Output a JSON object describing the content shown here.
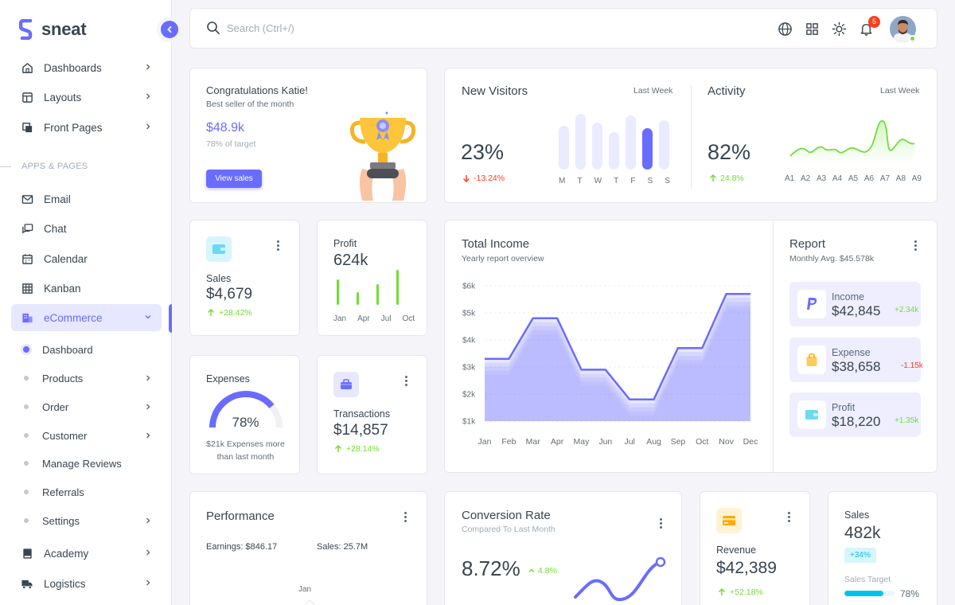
{
  "brand": {
    "name": "sneat"
  },
  "sidebar": {
    "main_items": [
      {
        "label": "Dashboards",
        "icon": "home-icon"
      },
      {
        "label": "Layouts",
        "icon": "layout-icon"
      },
      {
        "label": "Front Pages",
        "icon": "copy-icon"
      }
    ],
    "section_header": "APPS & PAGES",
    "app_items": [
      {
        "label": "Email",
        "icon": "mail-icon"
      },
      {
        "label": "Chat",
        "icon": "chat-icon"
      },
      {
        "label": "Calendar",
        "icon": "calendar-icon"
      },
      {
        "label": "Kanban",
        "icon": "grid-icon"
      },
      {
        "label": "eCommerce",
        "icon": "building-icon"
      }
    ],
    "ecommerce_sub": [
      {
        "label": "Dashboard"
      },
      {
        "label": "Products"
      },
      {
        "label": "Order"
      },
      {
        "label": "Customer"
      },
      {
        "label": "Manage Reviews"
      },
      {
        "label": "Referrals"
      },
      {
        "label": "Settings"
      }
    ],
    "bottom_items": [
      {
        "label": "Academy",
        "icon": "book-icon"
      },
      {
        "label": "Logistics",
        "icon": "truck-icon"
      }
    ]
  },
  "navbar": {
    "search_placeholder": "Search (Ctrl+/)",
    "notification_count": "5"
  },
  "congrats": {
    "title": "Congratulations Katie!",
    "subtitle": "Best seller of the month",
    "amount": "$48.9k",
    "target": "78% of target",
    "button": "View sales"
  },
  "visitors": {
    "title": "New Visitors",
    "period": "Last Week",
    "value": "23%",
    "change": "-13.24%",
    "days": [
      "M",
      "T",
      "W",
      "T",
      "F",
      "S",
      "S"
    ],
    "bar_levels": [
      0.38,
      0.58,
      0.44,
      0.28,
      0.55,
      0.34,
      0.48
    ]
  },
  "activity": {
    "title": "Activity",
    "period": "Last Week",
    "value": "82%",
    "change": "24.8%",
    "labels": [
      "A1",
      "A2",
      "A3",
      "A4",
      "A5",
      "A6",
      "A7",
      "A8",
      "A9"
    ]
  },
  "sales_small": {
    "title": "Sales",
    "value": "$4,679",
    "change": "+28.42%"
  },
  "profit": {
    "title": "Profit",
    "value": "624k",
    "months": [
      "Jan",
      "Apr",
      "Jul",
      "Oct"
    ]
  },
  "expenses": {
    "title": "Expenses",
    "percent": "78%",
    "note_line1": "$21k Expenses more",
    "note_line2": "than last month",
    "level": 0.78
  },
  "transactions": {
    "title": "Transactions",
    "value": "$14,857",
    "change": "+28.14%"
  },
  "income": {
    "title": "Total Income",
    "subtitle": "Yearly report overview"
  },
  "chart_data": {
    "type": "area",
    "title": "Total Income",
    "subtitle": "Yearly report overview",
    "categories": [
      "Jan",
      "Feb",
      "Mar",
      "Apr",
      "May",
      "Jun",
      "Jul",
      "Aug",
      "Sep",
      "Oct",
      "Nov",
      "Dec"
    ],
    "values": [
      3.3,
      3.3,
      4.8,
      4.8,
      2.9,
      2.9,
      1.8,
      1.8,
      3.7,
      3.7,
      5.7,
      5.7
    ],
    "y_ticks": [
      "$6k",
      "$5k",
      "$4k",
      "$3k",
      "$2k",
      "$1k"
    ],
    "ylim": [
      1,
      6
    ],
    "grid": true
  },
  "report": {
    "title": "Report",
    "subtitle": "Monthly Avg. $45.578k",
    "items": [
      {
        "label": "Income",
        "value": "$42,845",
        "change": "+2.34k",
        "icon": "paypal-icon"
      },
      {
        "label": "Expense",
        "value": "$38,658",
        "change": "-1.15k",
        "icon": "shopping-bag-icon"
      },
      {
        "label": "Profit",
        "value": "$18,220",
        "change": "+1.35k",
        "icon": "wallet-icon"
      }
    ]
  },
  "performance": {
    "title": "Performance",
    "earnings": "Earnings: $846.17",
    "sales": "Sales: 25.7M",
    "axis_label": "Jan"
  },
  "conversion": {
    "title": "Conversion Rate",
    "subtitle": "Compared To Last Month",
    "value": "8.72%",
    "change": "4.8%"
  },
  "revenue": {
    "title": "Revenue",
    "value": "$42,389",
    "change": "+52.18%"
  },
  "sales_target": {
    "title": "Sales",
    "value": "482k",
    "badge": "+34%",
    "target_label": "Sales Target",
    "target_percent": "78%",
    "level": 0.78
  },
  "colors": {
    "primary": "#696cff",
    "success": "#71dd37",
    "danger": "#ff3e1d",
    "info": "#03c3ec",
    "warning": "#ffab00"
  }
}
